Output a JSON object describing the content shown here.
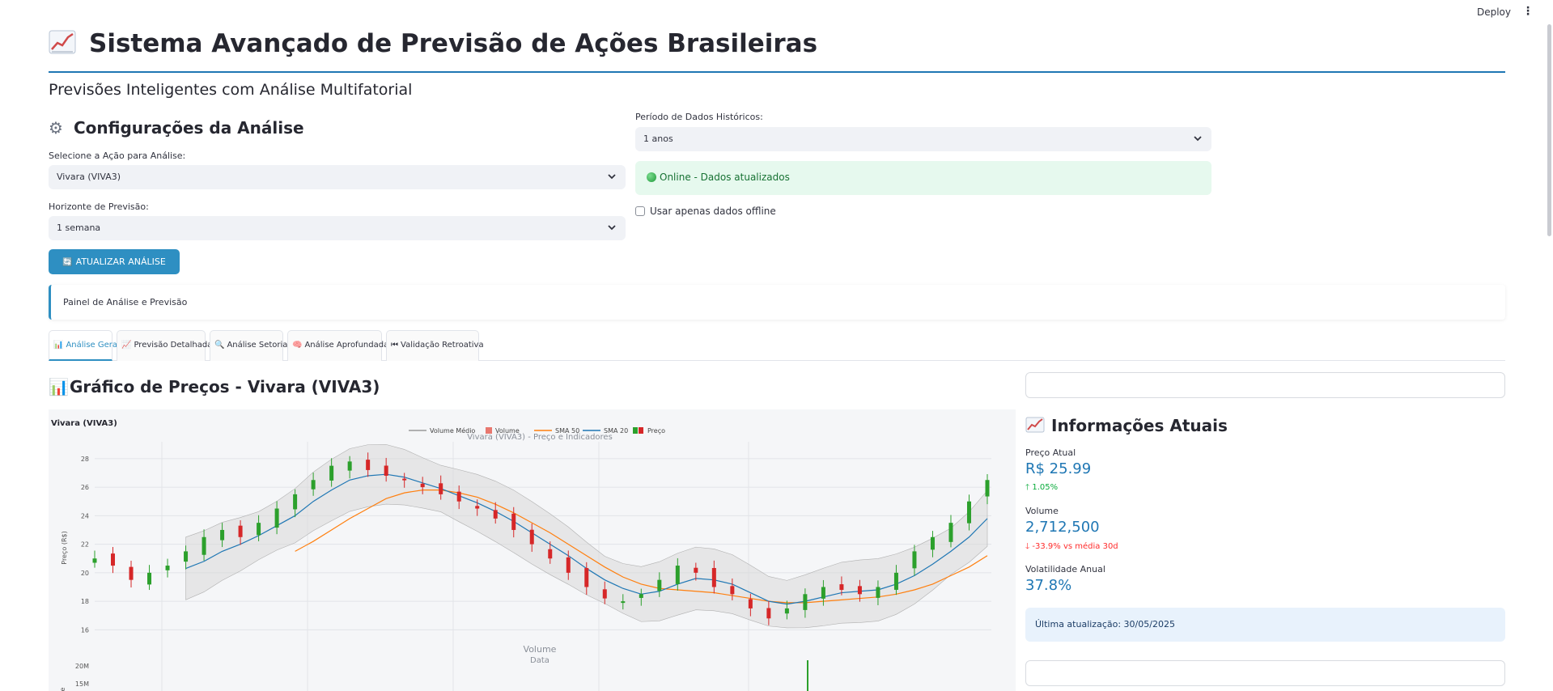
{
  "header": {
    "deploy_label": "Deploy",
    "menu_icon": "kebab-menu-icon"
  },
  "page": {
    "title": "Sistema Avançado de Previsão de Ações Brasileiras",
    "subtitle": "Previsões Inteligentes com Análise Multifatorial"
  },
  "config": {
    "title": "Configurações da Análise",
    "stock_label": "Selecione a Ação para Análise:",
    "stock_value": "Vivara (VIVA3)",
    "horizon_label": "Horizonte de Previsão:",
    "horizon_value": "1 semana",
    "period_label": "Período de Dados Históricos:",
    "period_value": "1 anos",
    "status_text": "Online - Dados atualizados",
    "offline_label": "Usar apenas dados offline",
    "update_button": "ATUALIZAR ANÁLISE"
  },
  "panel_title": "Painel de Análise e Previsão",
  "tabs": [
    {
      "label": "Análise Geral",
      "icon": "📊"
    },
    {
      "label": "Previsão Detalhada",
      "icon": "📈"
    },
    {
      "label": "Análise Setorial",
      "icon": "🔍"
    },
    {
      "label": "Análise Aprofundada",
      "icon": "🧠"
    },
    {
      "label": "Validação Retroativa",
      "icon": "⏮"
    }
  ],
  "chart_section": {
    "title": "Gráfico de Preços - Vivara (VIVA3)"
  },
  "chart_data": {
    "type": "line",
    "title": "Vivara (VIVA3)",
    "subtitle": "Vivara (VIVA3) - Preço e Indicadores",
    "xlabel": "Data",
    "ylabel": "Preço (R$)",
    "volume_title": "Volume",
    "volume_ylabel": "Volume",
    "ylim": [
      15,
      28.5
    ],
    "yticks": [
      16,
      18,
      20,
      22,
      24,
      26,
      28
    ],
    "volume_ticks": [
      "15M",
      "20M"
    ],
    "legend": [
      "Volume Médio",
      "Volume",
      "SMA 50",
      "SMA 20",
      "Preço"
    ],
    "legend_position": "top-center",
    "grid": true,
    "price_close": [
      21,
      20.5,
      19.5,
      20,
      20.5,
      21.5,
      22.5,
      23,
      22.5,
      23.5,
      24.5,
      25.5,
      26.5,
      27.5,
      27.8,
      27.2,
      26.8,
      26.5,
      26,
      25.5,
      25,
      24.5,
      23.8,
      23,
      22,
      21,
      20,
      19,
      18.2,
      18,
      18.5,
      19.5,
      20.5,
      20,
      19,
      18.5,
      17.5,
      16.8,
      17.5,
      18.5,
      19,
      18.8,
      18.5,
      19,
      20,
      21.5,
      22.5,
      23.5,
      25,
      26.5
    ],
    "sma20": [
      null,
      null,
      null,
      null,
      null,
      20.3,
      20.8,
      21.5,
      22,
      22.6,
      23.3,
      24,
      25,
      25.8,
      26.5,
      26.8,
      26.9,
      26.7,
      26.3,
      25.9,
      25.4,
      24.9,
      24.3,
      23.6,
      22.8,
      22,
      21.2,
      20.3,
      19.5,
      18.9,
      18.5,
      18.7,
      19.2,
      19.6,
      19.5,
      19.2,
      18.6,
      18,
      17.8,
      18,
      18.3,
      18.6,
      18.7,
      18.8,
      19.2,
      19.8,
      20.6,
      21.5,
      22.5,
      23.8
    ],
    "sma50": [
      null,
      null,
      null,
      null,
      null,
      null,
      null,
      null,
      null,
      null,
      null,
      21.5,
      22.2,
      23,
      23.8,
      24.5,
      25.2,
      25.6,
      25.8,
      25.8,
      25.6,
      25.3,
      24.8,
      24.2,
      23.5,
      22.8,
      22,
      21.2,
      20.4,
      19.7,
      19.2,
      18.9,
      18.8,
      18.7,
      18.6,
      18.4,
      18.2,
      18,
      17.9,
      17.9,
      18,
      18.1,
      18.2,
      18.3,
      18.5,
      18.8,
      19.2,
      19.8,
      20.4,
      21.2
    ],
    "volume_spike_label": "20M"
  },
  "info": {
    "title": "Informações Atuais",
    "price_label": "Preço Atual",
    "price_value": "R$ 25.99",
    "price_delta": "1.05%",
    "volume_label": "Volume",
    "volume_value": "2,712,500",
    "volume_delta": "-33.9% vs média 30d",
    "vol_label": "Volatilidade Anual",
    "vol_value": "37.8%",
    "updated_text": "Última atualização: 30/05/2025"
  },
  "colors": {
    "accent": "#2e8fc2",
    "metric": "#1f77b4",
    "up": "#09ab3b",
    "down": "#ff2b2b",
    "sma20": "#1f77b4",
    "sma50": "#ff7f0e",
    "band": "#d9d9d9"
  }
}
